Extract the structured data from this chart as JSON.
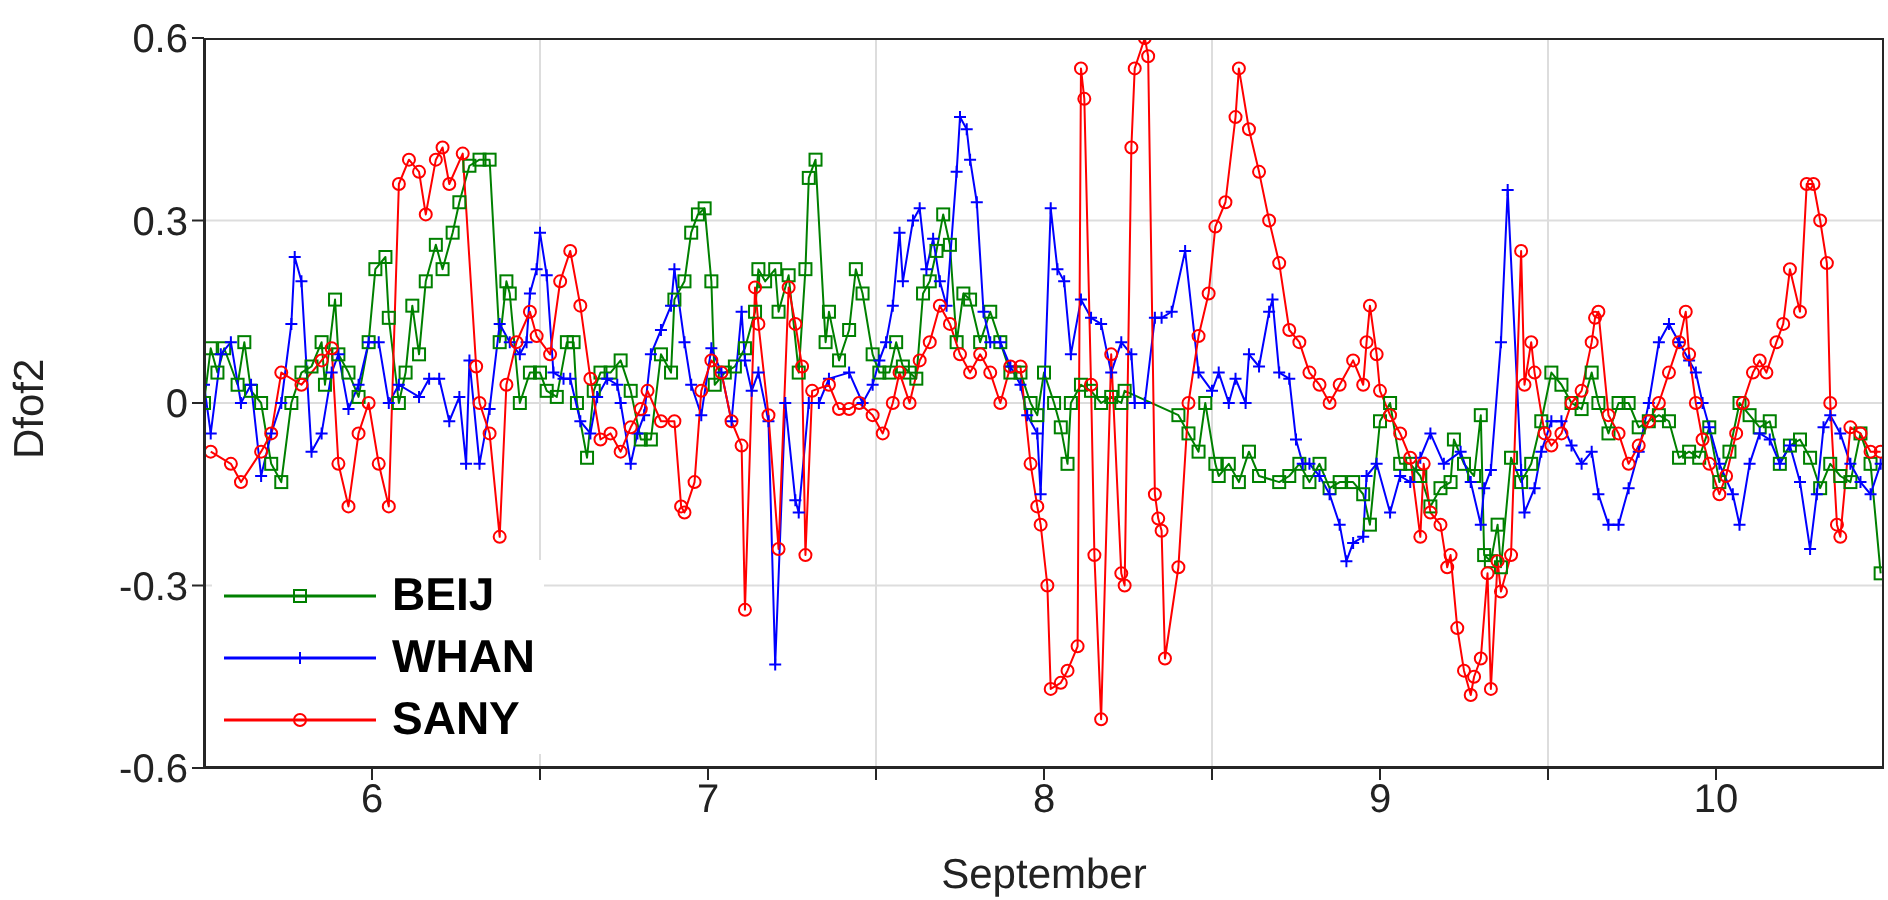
{
  "chart_data": {
    "type": "line",
    "xlabel": "September",
    "ylabel": "Dfof2",
    "xlim": [
      6,
      11
    ],
    "xticks": [
      {
        "value": 6.5,
        "label": "6"
      },
      {
        "value": 7,
        "label": null
      },
      {
        "value": 7.5,
        "label": "7"
      },
      {
        "value": 8,
        "label": null
      },
      {
        "value": 8.5,
        "label": "8"
      },
      {
        "value": 9,
        "label": null
      },
      {
        "value": 9.5,
        "label": "9"
      },
      {
        "value": 10,
        "label": null
      },
      {
        "value": 10.5,
        "label": "10"
      }
    ],
    "ylim": [
      -0.6,
      0.6
    ],
    "yticks": [
      -0.6,
      -0.3,
      0,
      0.3,
      0.6
    ],
    "grid": true,
    "legend": "bottom left",
    "line_style": "solid",
    "series": [
      {
        "name": "BEIJ",
        "color": "#008000",
        "marker": "square",
        "x": [
          6.0,
          6.02,
          6.04,
          6.06,
          6.1,
          6.12,
          6.14,
          6.17,
          6.2,
          6.23,
          6.26,
          6.29,
          6.32,
          6.35,
          6.36,
          6.39,
          6.4,
          6.43,
          6.46,
          6.49,
          6.51,
          6.54,
          6.55,
          6.58,
          6.6,
          6.62,
          6.64,
          6.66,
          6.69,
          6.71,
          6.74,
          6.76,
          6.79,
          6.82,
          6.85,
          6.88,
          6.9,
          6.91,
          6.94,
          6.97,
          7.0,
          7.02,
          7.05,
          7.08,
          7.1,
          7.11,
          7.14,
          7.16,
          7.18,
          7.21,
          7.24,
          7.27,
          7.3,
          7.33,
          7.36,
          7.39,
          7.4,
          7.43,
          7.45,
          7.47,
          7.49,
          7.51,
          7.52,
          7.55,
          7.58,
          7.61,
          7.64,
          7.65,
          7.67,
          7.7,
          7.71,
          7.74,
          7.77,
          7.79,
          7.8,
          7.82,
          7.85,
          7.86,
          7.89,
          7.92,
          7.94,
          7.96,
          7.99,
          8.01,
          8.04,
          8.06,
          8.08,
          8.1,
          8.12,
          8.14,
          8.16,
          8.18,
          8.2,
          8.22,
          8.24,
          8.26,
          8.28,
          8.31,
          8.34,
          8.37,
          8.4,
          8.43,
          8.46,
          8.48,
          8.5,
          8.53,
          8.55,
          8.57,
          8.58,
          8.61,
          8.64,
          8.67,
          8.7,
          8.73,
          8.74,
          8.9,
          8.93,
          8.96,
          8.98,
          9.01,
          9.02,
          9.05,
          9.08,
          9.11,
          9.14,
          9.2,
          9.23,
          9.26,
          9.29,
          9.32,
          9.35,
          9.38,
          9.42,
          9.45,
          9.47,
          9.5,
          9.53,
          9.56,
          9.59,
          9.62,
          9.65,
          9.68,
          9.71,
          9.72,
          9.75,
          9.78,
          9.8,
          9.81,
          9.83,
          9.85,
          9.86,
          9.89,
          9.92,
          9.95,
          9.98,
          10.01,
          10.04,
          10.07,
          10.1,
          10.13,
          10.15,
          10.18,
          10.21,
          10.24,
          10.27,
          10.3,
          10.33,
          10.36,
          10.39,
          10.42,
          10.45,
          10.48,
          10.51,
          10.54,
          10.57,
          10.6,
          10.63,
          10.66,
          10.69,
          10.72,
          10.75,
          10.78,
          10.81,
          10.84,
          10.87,
          10.9,
          10.93,
          10.96,
          10.99
        ],
        "values": [
          0.0,
          0.09,
          0.05,
          0.09,
          0.03,
          0.1,
          0.02,
          0.0,
          -0.1,
          -0.13,
          0.0,
          0.05,
          0.06,
          0.1,
          0.03,
          0.17,
          0.08,
          0.05,
          0.01,
          0.1,
          0.22,
          0.24,
          0.14,
          0.0,
          0.05,
          0.16,
          0.08,
          0.2,
          0.26,
          0.22,
          0.28,
          0.33,
          0.39,
          0.4,
          0.4,
          0.1,
          0.2,
          0.18,
          0.0,
          0.05,
          0.05,
          0.02,
          0.01,
          0.1,
          0.1,
          0.0,
          -0.09,
          0.02,
          0.05,
          0.05,
          0.07,
          0.02,
          -0.06,
          -0.06,
          0.08,
          0.05,
          0.17,
          0.2,
          0.28,
          0.31,
          0.32,
          0.2,
          0.03,
          0.05,
          0.06,
          0.09,
          0.15,
          0.22,
          0.2,
          0.22,
          0.15,
          0.21,
          0.05,
          0.22,
          0.37,
          0.4,
          0.1,
          0.15,
          0.07,
          0.12,
          0.22,
          0.18,
          0.08,
          0.05,
          0.05,
          0.1,
          0.06,
          0.05,
          0.04,
          0.18,
          0.2,
          0.25,
          0.31,
          0.26,
          0.1,
          0.18,
          0.17,
          0.1,
          0.15,
          0.1,
          0.05,
          0.05,
          0.0,
          -0.02,
          0.05,
          0.0,
          -0.04,
          -0.1,
          0.0,
          0.03,
          0.02,
          0.0,
          0.01,
          0.0,
          0.02,
          -0.02,
          -0.05,
          -0.08,
          0.0,
          -0.1,
          -0.12,
          -0.1,
          -0.13,
          -0.08,
          -0.12,
          -0.13,
          -0.12,
          -0.1,
          -0.13,
          -0.1,
          -0.14,
          -0.13,
          -0.13,
          -0.15,
          -0.2,
          -0.03,
          0.0,
          -0.1,
          -0.1,
          -0.12,
          -0.17,
          -0.14,
          -0.13,
          -0.06,
          -0.1,
          -0.12,
          -0.02,
          -0.25,
          -0.26,
          -0.2,
          -0.27,
          -0.09,
          -0.13,
          -0.1,
          -0.03,
          0.05,
          0.03,
          0.0,
          -0.01,
          0.05,
          0.0,
          -0.05,
          0.0,
          0.0,
          -0.04,
          -0.03,
          -0.02,
          -0.03,
          -0.09,
          -0.08,
          -0.09,
          -0.04,
          -0.13,
          -0.08,
          0.0,
          -0.02,
          -0.04,
          -0.03,
          -0.1,
          -0.07,
          -0.06,
          -0.09,
          -0.14,
          -0.1,
          -0.12,
          -0.13,
          -0.05,
          -0.1,
          -0.28
        ]
      },
      {
        "name": "WHAN",
        "color": "#0000ff",
        "marker": "cross",
        "x": [
          6.0,
          6.02,
          6.05,
          6.08,
          6.11,
          6.14,
          6.17,
          6.2,
          6.23,
          6.26,
          6.27,
          6.29,
          6.32,
          6.35,
          6.38,
          6.4,
          6.43,
          6.46,
          6.49,
          6.52,
          6.55,
          6.58,
          6.64,
          6.67,
          6.7,
          6.73,
          6.76,
          6.78,
          6.79,
          6.82,
          6.85,
          6.88,
          6.91,
          6.94,
          6.96,
          6.97,
          6.99,
          7.0,
          7.02,
          7.04,
          7.07,
          7.09,
          7.12,
          7.15,
          7.17,
          7.2,
          7.23,
          7.24,
          7.27,
          7.29,
          7.31,
          7.33,
          7.36,
          7.39,
          7.4,
          7.43,
          7.45,
          7.48,
          7.51,
          7.54,
          7.57,
          7.6,
          7.61,
          7.63,
          7.65,
          7.68,
          7.7,
          7.73,
          7.76,
          7.77,
          7.8,
          7.83,
          7.86,
          7.92,
          7.96,
          7.99,
          8.01,
          8.03,
          8.05,
          8.07,
          8.08,
          8.11,
          8.13,
          8.15,
          8.17,
          8.19,
          8.21,
          8.24,
          8.25,
          8.27,
          8.28,
          8.3,
          8.32,
          8.34,
          8.37,
          8.4,
          8.43,
          8.45,
          8.48,
          8.49,
          8.52,
          8.54,
          8.56,
          8.58,
          8.61,
          8.64,
          8.67,
          8.7,
          8.73,
          8.76,
          8.77,
          8.8,
          8.83,
          8.85,
          8.88,
          8.92,
          8.96,
          9.0,
          9.02,
          9.05,
          9.07,
          9.1,
          9.11,
          9.14,
          9.17,
          9.18,
          9.2,
          9.23,
          9.25,
          9.27,
          9.29,
          9.32,
          9.35,
          9.38,
          9.4,
          9.42,
          9.45,
          9.46,
          9.49,
          9.53,
          9.56,
          9.59,
          9.62,
          9.65,
          9.69,
          9.74,
          9.77,
          9.8,
          9.81,
          9.83,
          9.86,
          9.88,
          9.92,
          9.93,
          9.96,
          9.98,
          10.01,
          10.04,
          10.07,
          10.1,
          10.13,
          10.15,
          10.18,
          10.21,
          10.24,
          10.27,
          10.3,
          10.33,
          10.36,
          10.39,
          10.42,
          10.44,
          10.46,
          10.48,
          10.51,
          10.55,
          10.57,
          10.6,
          10.63,
          10.66,
          10.69,
          10.72,
          10.75,
          10.78,
          10.8,
          10.82,
          10.84,
          10.87,
          10.9,
          10.93,
          10.96,
          10.99
        ],
        "values": [
          0.03,
          -0.05,
          0.08,
          0.1,
          0.0,
          0.03,
          -0.12,
          -0.05,
          0.0,
          0.13,
          0.24,
          0.2,
          -0.08,
          -0.05,
          0.05,
          0.08,
          -0.01,
          0.03,
          0.1,
          0.1,
          0.0,
          0.03,
          0.01,
          0.04,
          0.04,
          -0.03,
          0.01,
          -0.1,
          0.07,
          -0.1,
          -0.01,
          0.13,
          0.1,
          0.08,
          0.1,
          0.18,
          0.22,
          0.28,
          0.21,
          0.05,
          0.04,
          0.04,
          -0.03,
          -0.05,
          0.01,
          0.04,
          0.03,
          0.0,
          -0.1,
          -0.05,
          -0.02,
          0.08,
          0.12,
          0.16,
          0.22,
          0.1,
          0.03,
          -0.02,
          0.09,
          0.05,
          -0.03,
          0.15,
          0.07,
          0.02,
          0.05,
          -0.03,
          -0.43,
          0.0,
          -0.16,
          -0.18,
          0.0,
          0.0,
          0.04,
          0.05,
          0.0,
          0.03,
          0.07,
          0.1,
          0.16,
          0.28,
          0.2,
          0.3,
          0.32,
          0.22,
          0.27,
          0.2,
          0.16,
          0.38,
          0.47,
          0.45,
          0.4,
          0.33,
          0.15,
          0.1,
          0.1,
          0.06,
          0.03,
          -0.02,
          -0.05,
          -0.15,
          0.32,
          0.22,
          0.2,
          0.08,
          0.17,
          0.14,
          0.13,
          0.05,
          0.1,
          0.08,
          0.0,
          0.0,
          0.14,
          0.14,
          0.15,
          0.25,
          0.05,
          0.02,
          0.05,
          0.0,
          0.04,
          0.0,
          0.08,
          0.06,
          0.15,
          0.17,
          0.05,
          0.04,
          -0.06,
          -0.1,
          -0.1,
          -0.12,
          -0.15,
          -0.2,
          -0.26,
          -0.23,
          -0.22,
          -0.12,
          -0.1,
          -0.18,
          -0.12,
          -0.13,
          -0.09,
          -0.05,
          -0.1,
          -0.08,
          -0.13,
          -0.2,
          -0.14,
          -0.11,
          0.1,
          0.35,
          -0.11,
          -0.18,
          -0.14,
          -0.08,
          -0.03,
          -0.03,
          -0.07,
          -0.1,
          -0.08,
          -0.15,
          -0.2,
          -0.2,
          -0.14,
          -0.08,
          0.0,
          0.1,
          0.13,
          0.1,
          0.07,
          0.05,
          0.0,
          -0.04,
          -0.1,
          -0.15,
          -0.2,
          -0.1,
          -0.05,
          -0.06,
          -0.1,
          -0.07,
          -0.13,
          -0.24,
          -0.15,
          -0.04,
          -0.02,
          -0.05,
          -0.1,
          -0.13,
          -0.15,
          -0.1
        ]
      },
      {
        "name": "SANY",
        "color": "#ff0000",
        "marker": "circle",
        "x": [
          6.02,
          6.08,
          6.11,
          6.17,
          6.2,
          6.23,
          6.29,
          6.35,
          6.38,
          6.4,
          6.43,
          6.46,
          6.49,
          6.52,
          6.55,
          6.58,
          6.61,
          6.64,
          6.66,
          6.69,
          6.71,
          6.73,
          6.77,
          6.81,
          6.82,
          6.85,
          6.88,
          6.9,
          6.93,
          6.97,
          6.99,
          7.03,
          7.06,
          7.09,
          7.12,
          7.15,
          7.18,
          7.21,
          7.24,
          7.27,
          7.3,
          7.32,
          7.36,
          7.4,
          7.42,
          7.43,
          7.46,
          7.48,
          7.51,
          7.54,
          7.57,
          7.6,
          7.61,
          7.64,
          7.65,
          7.68,
          7.71,
          7.74,
          7.76,
          7.78,
          7.79,
          7.81,
          7.86,
          7.89,
          7.92,
          7.95,
          7.99,
          8.02,
          8.05,
          8.07,
          8.1,
          8.13,
          8.16,
          8.19,
          8.22,
          8.25,
          8.28,
          8.31,
          8.34,
          8.37,
          8.4,
          8.43,
          8.46,
          8.48,
          8.49,
          8.51,
          8.52,
          8.55,
          8.57,
          8.6,
          8.61,
          8.62,
          8.64,
          8.65,
          8.67,
          8.7,
          8.73,
          8.74,
          8.76,
          8.77,
          8.8,
          8.81,
          8.83,
          8.84,
          8.85,
          8.86,
          8.9,
          8.93,
          8.96,
          8.99,
          9.01,
          9.04,
          9.07,
          9.08,
          9.11,
          9.14,
          9.17,
          9.2,
          9.23,
          9.26,
          9.29,
          9.32,
          9.35,
          9.38,
          9.42,
          9.45,
          9.46,
          9.47,
          9.49,
          9.5,
          9.53,
          9.56,
          9.59,
          9.62,
          9.63,
          9.65,
          9.68,
          9.7,
          9.71,
          9.73,
          9.75,
          9.77,
          9.78,
          9.8,
          9.82,
          9.83,
          9.85,
          9.86,
          9.89,
          9.92,
          9.93,
          9.95,
          9.96,
          9.99,
          10.01,
          10.04,
          10.07,
          10.1,
          10.13,
          10.14,
          10.15,
          10.18,
          10.21,
          10.24,
          10.27,
          10.3,
          10.33,
          10.36,
          10.39,
          10.41,
          10.42,
          10.44,
          10.46,
          10.48,
          10.51,
          10.53,
          10.56,
          10.58,
          10.61,
          10.63,
          10.65,
          10.68,
          10.7,
          10.72,
          10.75,
          10.77,
          10.79,
          10.81,
          10.83,
          10.84,
          10.86,
          10.87,
          10.9,
          10.93,
          10.96,
          10.99
        ],
        "values": [
          -0.08,
          -0.1,
          -0.13,
          -0.08,
          -0.05,
          0.05,
          0.03,
          0.07,
          0.09,
          -0.1,
          -0.17,
          -0.05,
          0.0,
          -0.1,
          -0.17,
          0.36,
          0.4,
          0.38,
          0.31,
          0.4,
          0.42,
          0.36,
          0.41,
          0.06,
          0.0,
          -0.05,
          -0.22,
          0.03,
          0.1,
          0.15,
          0.11,
          0.08,
          0.2,
          0.25,
          0.16,
          0.04,
          -0.06,
          -0.05,
          -0.08,
          -0.04,
          -0.01,
          0.02,
          -0.03,
          -0.03,
          -0.17,
          -0.18,
          -0.13,
          0.02,
          0.07,
          0.05,
          -0.03,
          -0.07,
          -0.34,
          0.19,
          0.13,
          -0.02,
          -0.24,
          0.19,
          0.13,
          0.06,
          -0.25,
          0.02,
          0.03,
          -0.01,
          -0.01,
          0.0,
          -0.02,
          -0.05,
          0.0,
          0.05,
          0.0,
          0.07,
          0.1,
          0.16,
          0.13,
          0.08,
          0.05,
          0.08,
          0.05,
          0.0,
          0.06,
          0.06,
          -0.1,
          -0.17,
          -0.2,
          -0.3,
          -0.47,
          -0.46,
          -0.44,
          -0.4,
          0.55,
          0.5,
          0.03,
          -0.25,
          -0.52,
          0.08,
          -0.28,
          -0.3,
          0.42,
          0.55,
          0.6,
          0.57,
          -0.15,
          -0.19,
          -0.21,
          -0.42,
          -0.27,
          0.0,
          0.11,
          0.18,
          0.29,
          0.33,
          0.47,
          0.55,
          0.45,
          0.38,
          0.3,
          0.23,
          0.12,
          0.1,
          0.05,
          0.03,
          0.0,
          0.03,
          0.07,
          0.03,
          0.1,
          0.16,
          0.08,
          0.02,
          -0.02,
          -0.05,
          -0.09,
          -0.22,
          -0.1,
          -0.18,
          -0.2,
          -0.27,
          -0.25,
          -0.37,
          -0.44,
          -0.48,
          -0.45,
          -0.42,
          -0.28,
          -0.47,
          -0.26,
          -0.31,
          -0.25,
          0.25,
          0.03,
          0.1,
          0.05,
          -0.05,
          -0.07,
          -0.05,
          0.0,
          0.02,
          0.1,
          0.14,
          0.15,
          -0.02,
          -0.05,
          -0.1,
          -0.07,
          -0.03,
          0.0,
          0.05,
          0.1,
          0.15,
          0.08,
          0.0,
          -0.06,
          -0.1,
          -0.15,
          -0.12,
          -0.05,
          0.0,
          0.05,
          0.07,
          0.05,
          0.1,
          0.13,
          0.22,
          0.15,
          0.36,
          0.36,
          0.3,
          0.23,
          0.0,
          -0.2,
          -0.22,
          -0.04,
          -0.05,
          -0.08,
          -0.08
        ]
      }
    ]
  }
}
